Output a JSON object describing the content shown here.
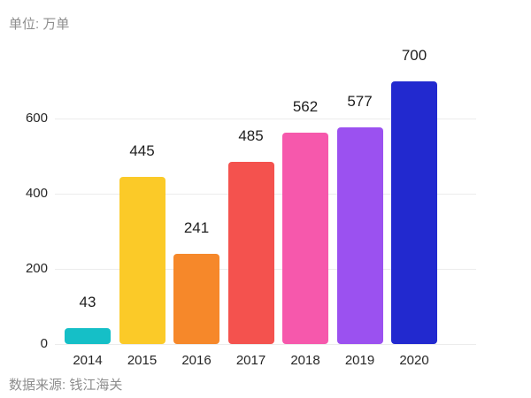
{
  "header": {
    "unit_label": "单位: 万单"
  },
  "footer": {
    "source_label": "数据来源: 钱江海关"
  },
  "colors": {
    "background": "#ffffff",
    "gridline": "#ececec",
    "tick_text": "#262626",
    "value_text": "#1f1f1f",
    "muted_text": "#8e8e8e"
  },
  "chart_data": {
    "type": "bar",
    "title": "",
    "xlabel": "",
    "ylabel": "",
    "unit_note": "单位: 万单",
    "source_note": "数据来源: 钱江海关",
    "categories": [
      "2014",
      "2015",
      "2016",
      "2017",
      "2018",
      "2019",
      "2020"
    ],
    "values": [
      43,
      445,
      241,
      485,
      562,
      577,
      700
    ],
    "bar_colors": [
      "#15bfc7",
      "#fbca28",
      "#f6882a",
      "#f4524e",
      "#f658ac",
      "#9b51f0",
      "#2229cf"
    ],
    "yticks": [
      0,
      200,
      400,
      600
    ],
    "ylim": [
      0,
      700
    ],
    "grid": true,
    "legend": false,
    "value_labels_shown": true
  }
}
